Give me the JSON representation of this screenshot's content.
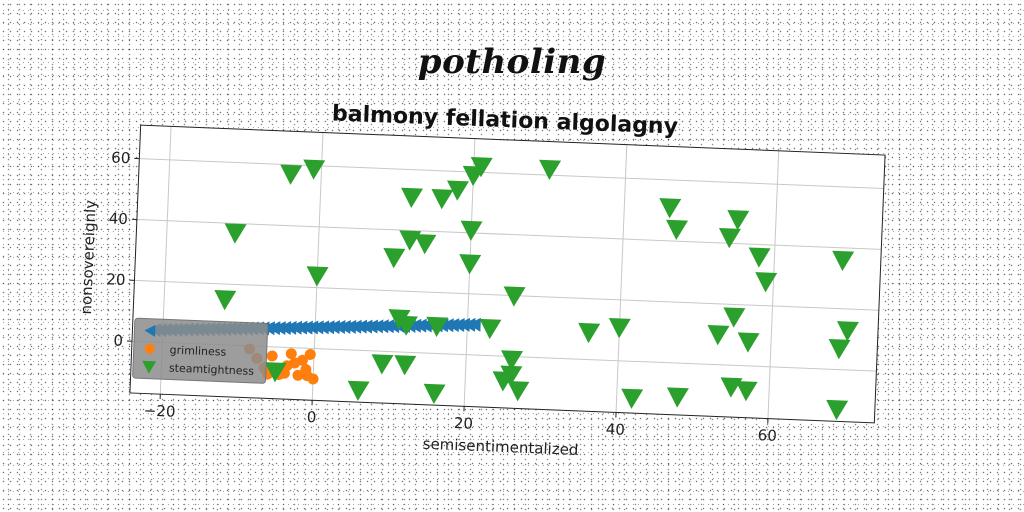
{
  "figure": {
    "super_title": "potholing"
  },
  "chart_data": {
    "type": "scatter",
    "title": "balmony fellation algolagny",
    "xlabel": "semisentimentalized",
    "ylabel": "nonsovereignly",
    "xlim": [
      -24,
      74
    ],
    "ylim": [
      -17,
      71
    ],
    "xticks": [
      -20,
      0,
      20,
      40,
      60
    ],
    "yticks": [
      0,
      20,
      40,
      60
    ],
    "xtick_labels": [
      "−20",
      "0",
      "20",
      "40",
      "60"
    ],
    "ytick_labels": [
      "0",
      "20",
      "40",
      "60"
    ],
    "grid": true,
    "legend_position": "lower-left",
    "series": [
      {
        "name": "",
        "marker": "triangle-left",
        "color": "#1f77b4",
        "line": {
          "x_from": -21,
          "y_from": 4,
          "x_to": 21,
          "y_to": 10,
          "count": 60
        }
      },
      {
        "name": "grimliness",
        "marker": "circle",
        "color": "#ff7f0e",
        "points": [
          [
            -8.5,
            -1
          ],
          [
            -7.5,
            -4
          ],
          [
            -6.5,
            -7
          ],
          [
            -5.5,
            -3
          ],
          [
            -4.5,
            -9
          ],
          [
            -3.5,
            -6
          ],
          [
            -3,
            -2
          ],
          [
            -2.5,
            -5
          ],
          [
            -2,
            -9
          ],
          [
            -1.5,
            -4
          ],
          [
            -1,
            -7
          ],
          [
            -0.5,
            -2
          ],
          [
            0,
            -10
          ],
          [
            -0.8,
            -9
          ],
          [
            -3.8,
            -8.5
          ],
          [
            -6,
            -9
          ]
        ]
      },
      {
        "name": "steamtightness",
        "marker": "triangle-down",
        "color": "#2ca02c",
        "points": [
          [
            -4,
            57
          ],
          [
            -1,
            59
          ],
          [
            -11,
            37
          ],
          [
            -12,
            15
          ],
          [
            0,
            24
          ],
          [
            -5,
            -8
          ],
          [
            6,
            -13
          ],
          [
            9,
            -4
          ],
          [
            12,
            -4
          ],
          [
            10,
            31
          ],
          [
            12,
            37
          ],
          [
            14,
            36
          ],
          [
            12,
            51
          ],
          [
            16,
            51
          ],
          [
            18,
            54
          ],
          [
            20,
            59
          ],
          [
            21,
            62
          ],
          [
            30,
            62
          ],
          [
            20,
            41
          ],
          [
            20,
            30
          ],
          [
            11,
            11
          ],
          [
            12,
            9
          ],
          [
            16,
            9
          ],
          [
            23,
            9
          ],
          [
            26,
            -1
          ],
          [
            26,
            -6
          ],
          [
            25,
            -8
          ],
          [
            27,
            -11
          ],
          [
            26,
            20
          ],
          [
            16,
            -13
          ],
          [
            36,
            9
          ],
          [
            40,
            11
          ],
          [
            42,
            -12
          ],
          [
            48,
            -11
          ],
          [
            46,
            51
          ],
          [
            47,
            44
          ],
          [
            55,
            48
          ],
          [
            54,
            42
          ],
          [
            58,
            36
          ],
          [
            59,
            28
          ],
          [
            69,
            36
          ],
          [
            55,
            16
          ],
          [
            53,
            10
          ],
          [
            57,
            8
          ],
          [
            55,
            -7
          ],
          [
            57,
            -8
          ],
          [
            69,
            -13
          ],
          [
            70,
            13
          ],
          [
            69,
            7
          ]
        ]
      }
    ]
  }
}
